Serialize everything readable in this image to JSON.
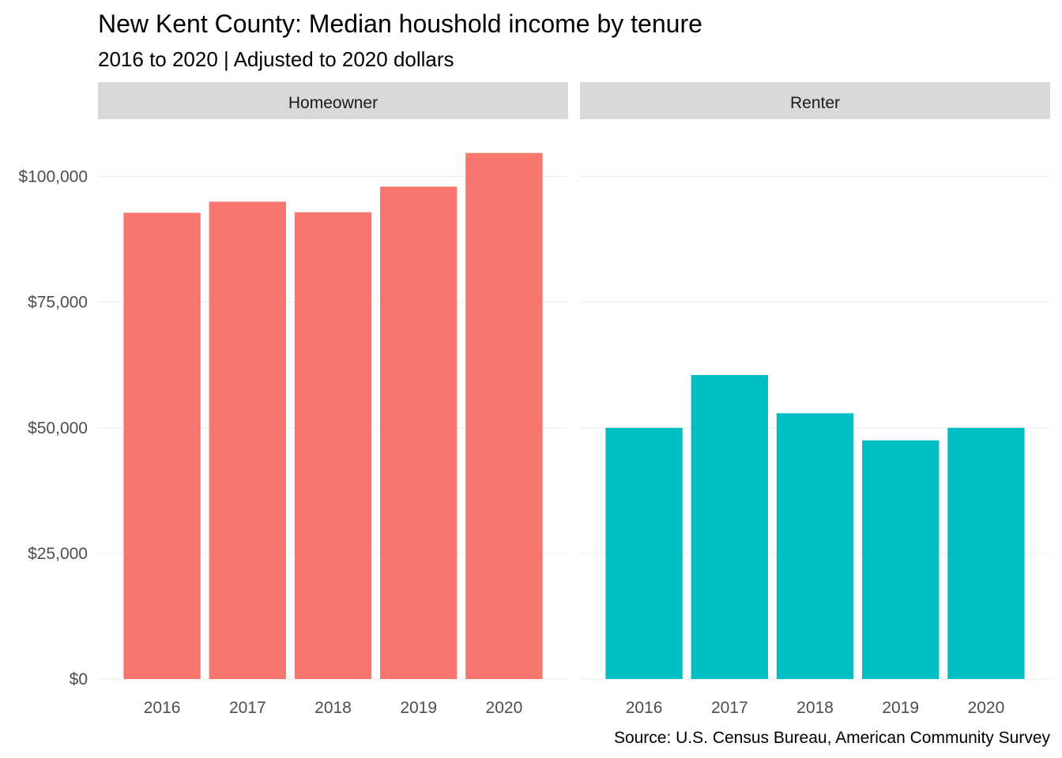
{
  "chart_data": {
    "type": "bar",
    "title": "New Kent County: Median houshold income by tenure",
    "subtitle": "2016 to 2020 | Adjusted to 2020 dollars",
    "caption": "Source: U.S. Census Bureau, American Community Survey",
    "xlabel": "",
    "ylabel": "",
    "categories": [
      "2016",
      "2017",
      "2018",
      "2019",
      "2020"
    ],
    "ylim": [
      0,
      110000
    ],
    "yticks": [
      0,
      25000,
      50000,
      75000,
      100000
    ],
    "ytick_labels": [
      "$0",
      "$25,000",
      "$50,000",
      "$75,000",
      "$100,000"
    ],
    "grid": true,
    "legend": "none",
    "facets": [
      {
        "name": "Homeowner",
        "color": "#F8766D",
        "values": [
          92800,
          95000,
          92900,
          98000,
          104700
        ]
      },
      {
        "name": "Renter",
        "color": "#00BFC4",
        "values": [
          50000,
          60500,
          52900,
          47500,
          50000
        ]
      }
    ]
  }
}
